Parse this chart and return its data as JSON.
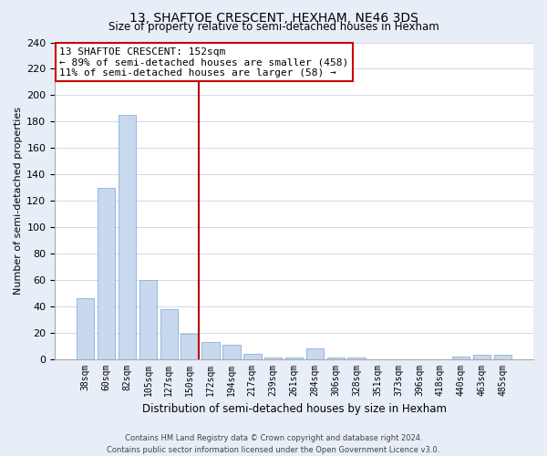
{
  "title": "13, SHAFTOE CRESCENT, HEXHAM, NE46 3DS",
  "subtitle": "Size of property relative to semi-detached houses in Hexham",
  "xlabel": "Distribution of semi-detached houses by size in Hexham",
  "ylabel": "Number of semi-detached properties",
  "categories": [
    "38sqm",
    "60sqm",
    "82sqm",
    "105sqm",
    "127sqm",
    "150sqm",
    "172sqm",
    "194sqm",
    "217sqm",
    "239sqm",
    "261sqm",
    "284sqm",
    "306sqm",
    "328sqm",
    "351sqm",
    "373sqm",
    "396sqm",
    "418sqm",
    "440sqm",
    "463sqm",
    "485sqm"
  ],
  "values": [
    46,
    130,
    185,
    60,
    38,
    19,
    13,
    11,
    4,
    1,
    1,
    8,
    1,
    1,
    0,
    0,
    0,
    0,
    2,
    3,
    3
  ],
  "bar_color": "#c8d8ee",
  "bar_edge_color": "#8ab0d8",
  "vline_x_index": 5,
  "vline_color": "#bb0000",
  "ylim": [
    0,
    240
  ],
  "yticks": [
    0,
    20,
    40,
    60,
    80,
    100,
    120,
    140,
    160,
    180,
    200,
    220,
    240
  ],
  "annotation_title": "13 SHAFTOE CRESCENT: 152sqm",
  "annotation_line1": "← 89% of semi-detached houses are smaller (458)",
  "annotation_line2": "11% of semi-detached houses are larger (58) →",
  "annotation_box_color": "#ffffff",
  "annotation_box_edge": "#cc0000",
  "footer_line1": "Contains HM Land Registry data © Crown copyright and database right 2024.",
  "footer_line2": "Contains public sector information licensed under the Open Government Licence v3.0.",
  "figure_background": "#e8eef8",
  "plot_background": "#ffffff"
}
